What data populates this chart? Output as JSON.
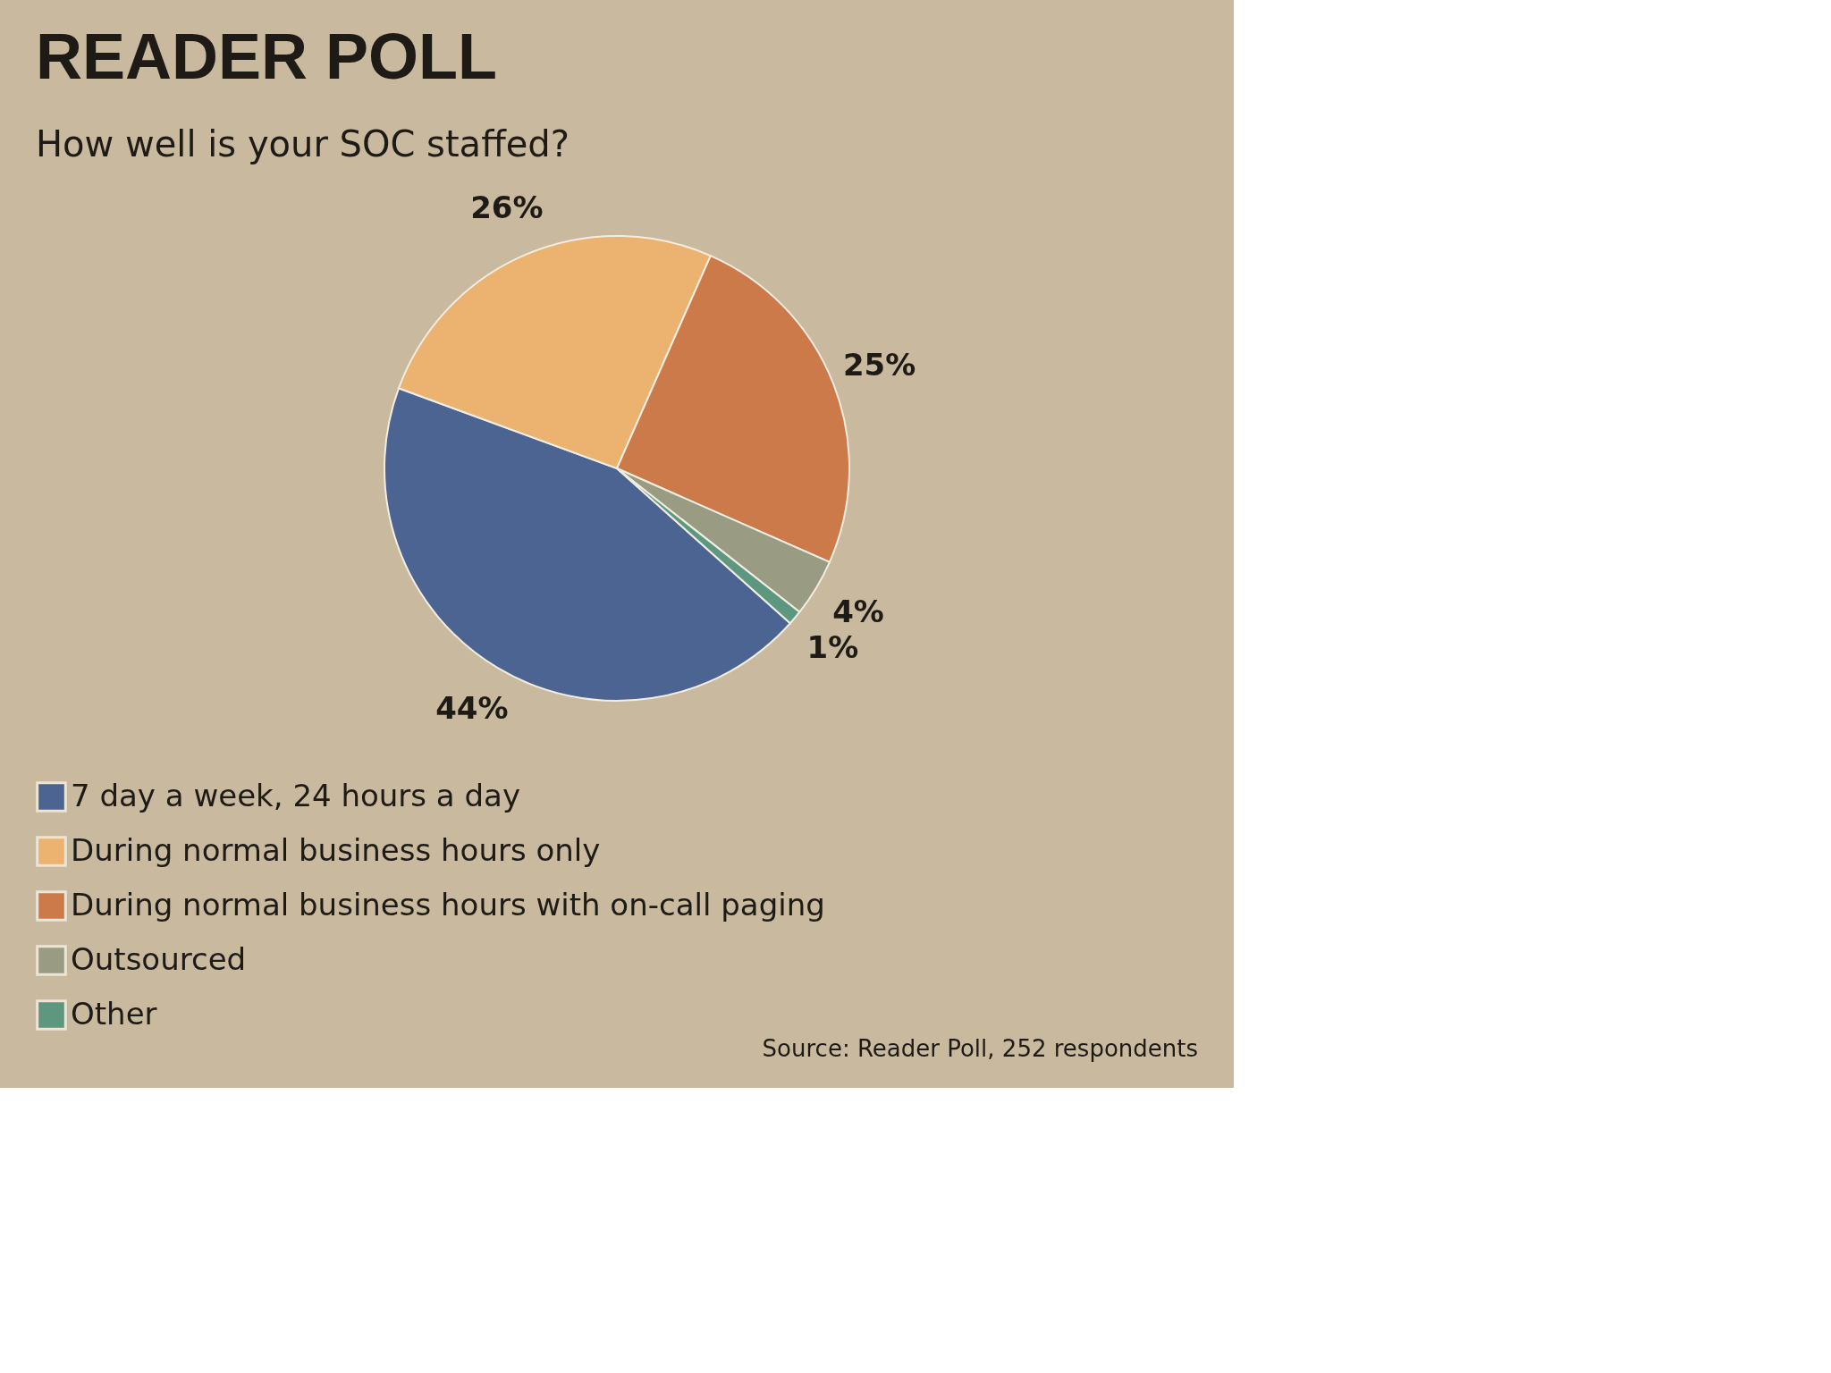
{
  "chart_data": {
    "type": "pie",
    "title": "READER POLL",
    "subtitle": "How well is your SOC staffed?",
    "categories": [
      "7 day a week, 24 hours a day",
      "During normal business hours only",
      "During normal business hours with on-call paging",
      "Outsourced",
      "Other"
    ],
    "values": [
      44,
      26,
      25,
      4,
      1
    ],
    "colors": [
      "#4b6491",
      "#ebb270",
      "#cd7a4a",
      "#9a9b83",
      "#5e977f"
    ],
    "value_labels": [
      "44%",
      "26%",
      "25%",
      "4%",
      "1%"
    ],
    "legend": "bottom left",
    "annotations": [
      "Source: Reader Poll, 252 respondents"
    ]
  }
}
